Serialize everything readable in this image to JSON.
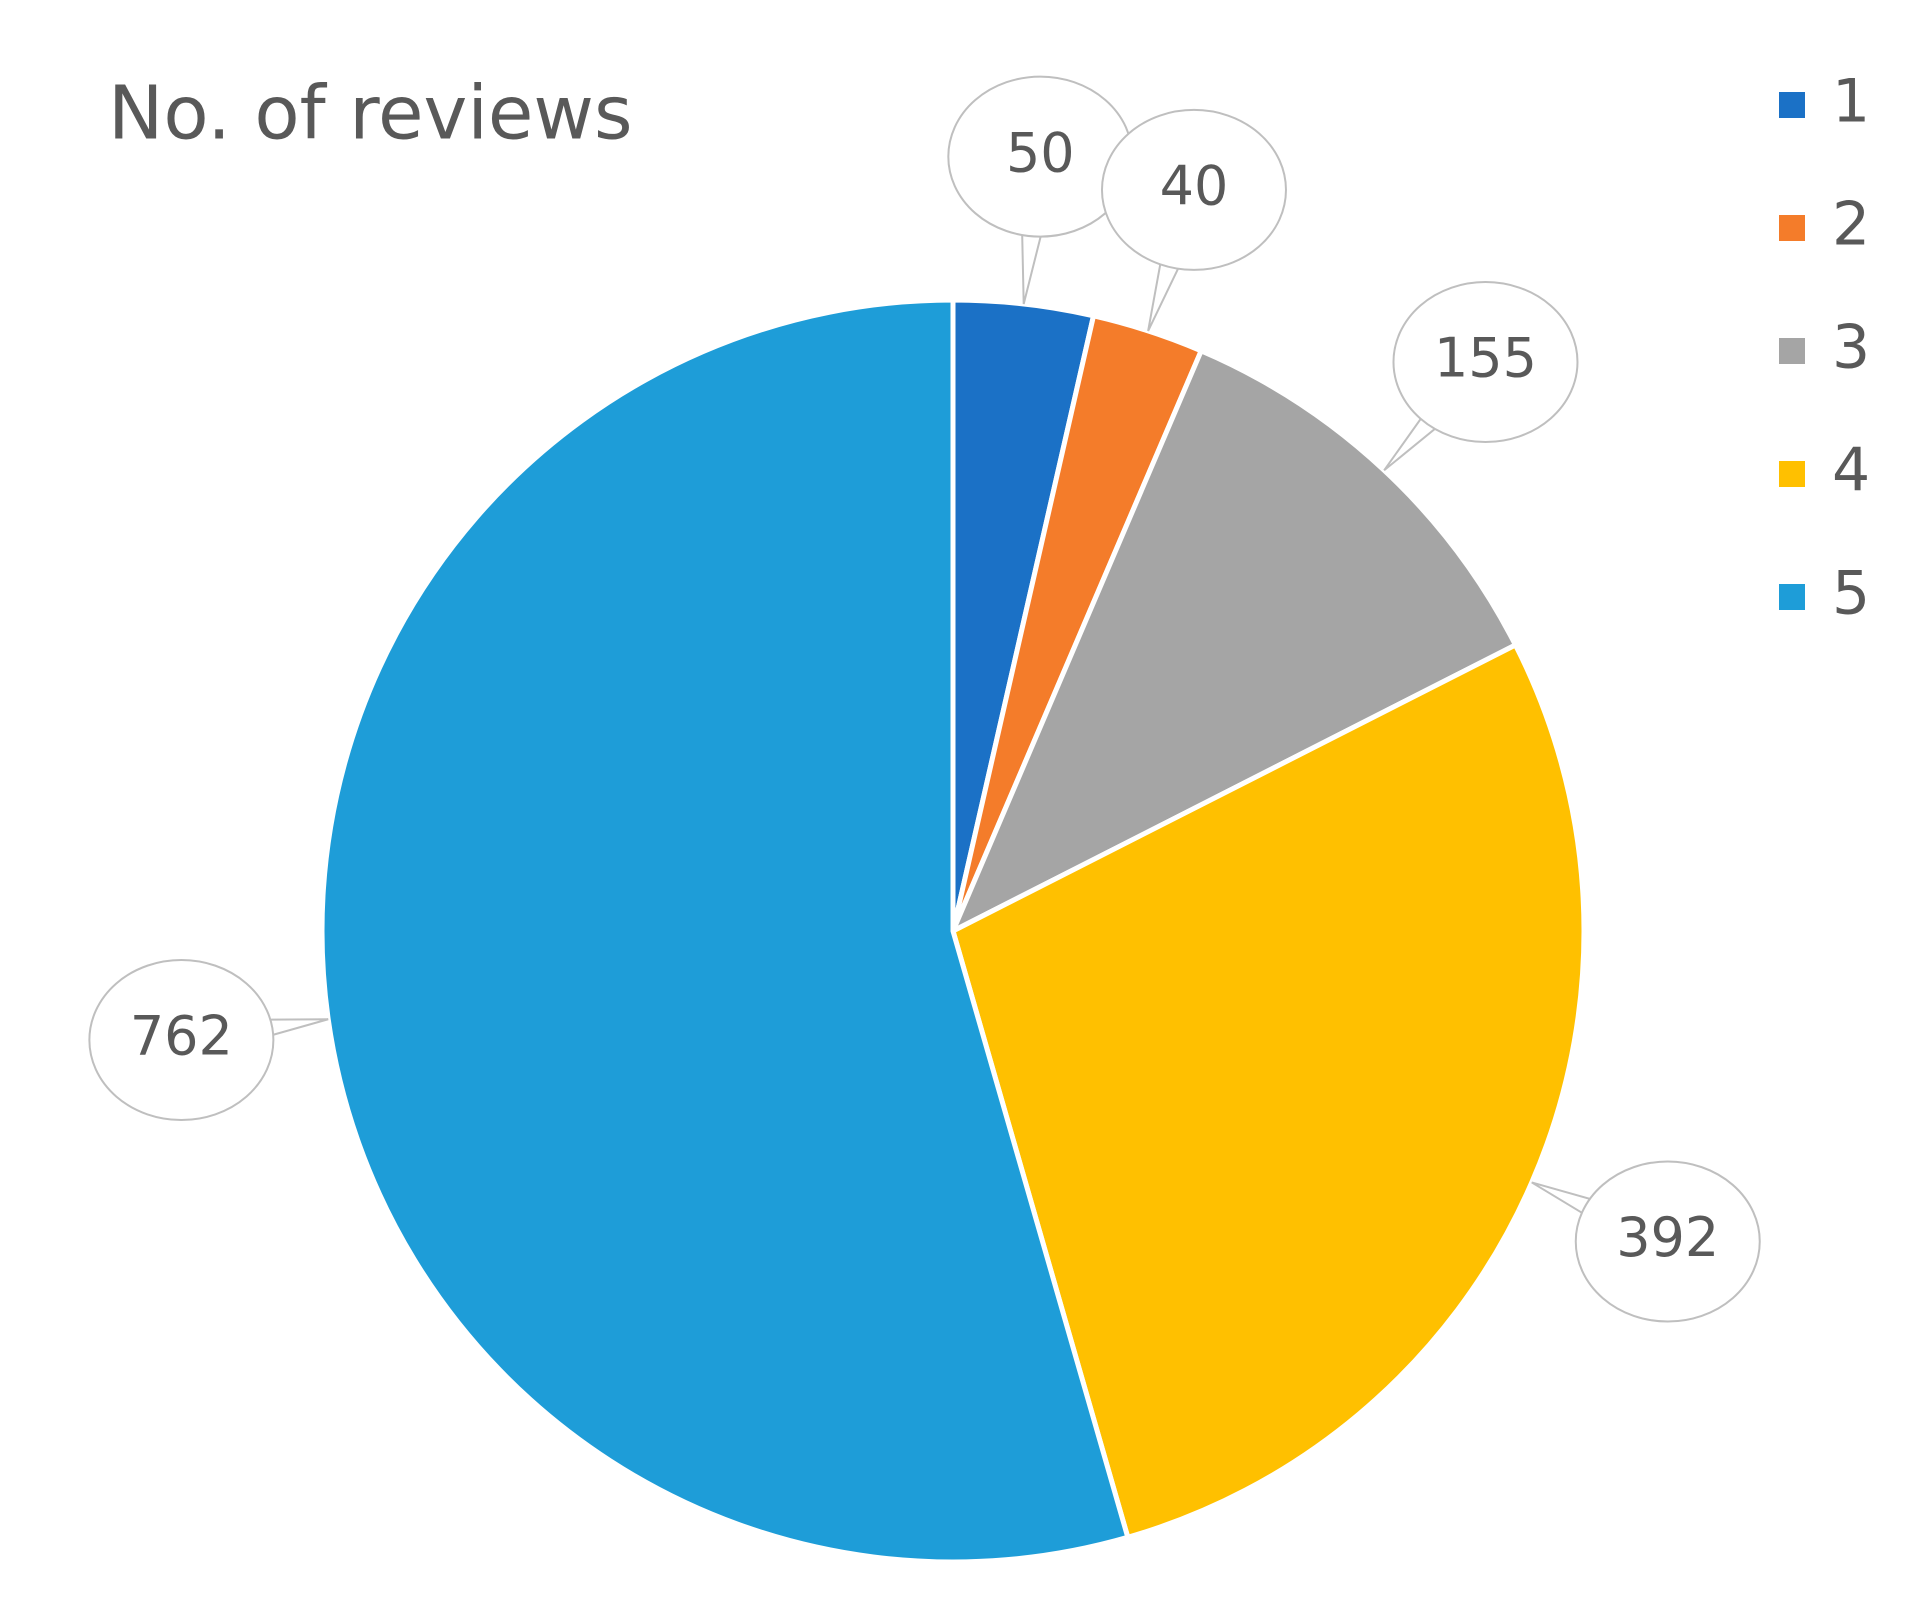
{
  "chart_data": {
    "type": "pie",
    "title": "No. of reviews",
    "categories": [
      "1",
      "2",
      "3",
      "4",
      "5"
    ],
    "values": [
      50,
      40,
      155,
      392,
      762
    ],
    "colors": [
      "#1b71c6",
      "#f47c2a",
      "#a5a5a5",
      "#ffc000",
      "#1e9dd8"
    ],
    "legend": "right"
  }
}
